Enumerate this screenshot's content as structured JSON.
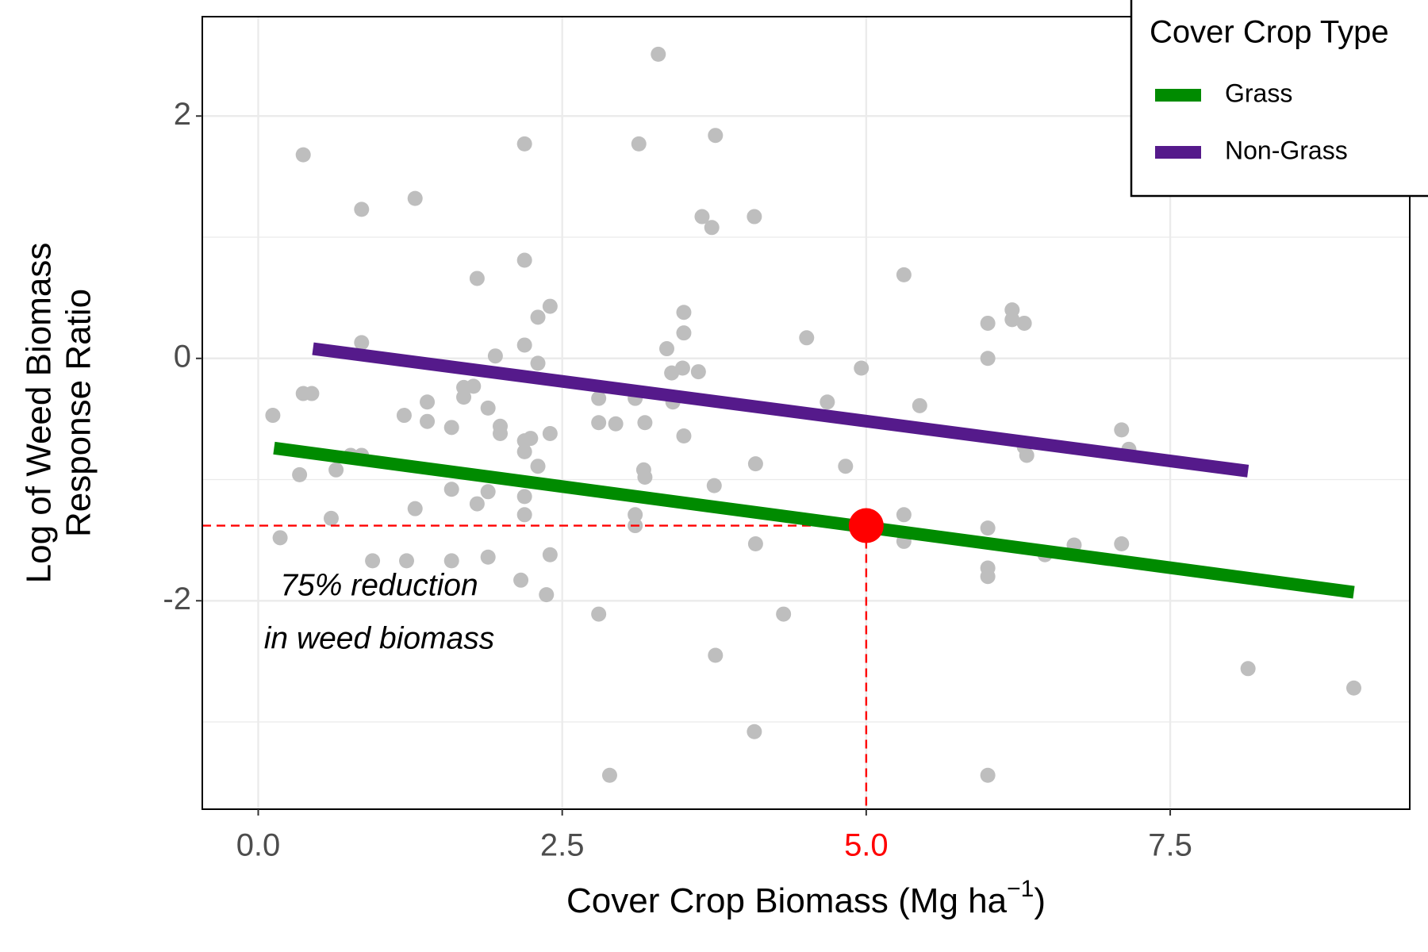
{
  "chart_data": {
    "type": "scatter",
    "xlabel": {
      "text": "Cover Crop Biomass (Mg ha",
      "superscript": "−1",
      "suffix": ")"
    },
    "ylabel": [
      "Log of Weed Biomass",
      "Response Ratio"
    ],
    "xlim": [
      -0.46,
      9.47
    ],
    "ylim": [
      -3.72,
      2.82
    ],
    "xticks": [
      {
        "value": 0,
        "label": "0.0"
      },
      2.5,
      {
        "value": 5,
        "label": "5.0",
        "color": "red"
      },
      7.5
    ],
    "yticks": [
      -2,
      0,
      2
    ],
    "minor_yticks": [
      -3,
      -1,
      1
    ],
    "grid": true,
    "point_color": "#bebebe",
    "x": [
      0.12,
      0.18,
      0.34,
      0.37,
      0.37,
      0.44,
      0.6,
      0.64,
      0.76,
      0.85,
      0.85,
      0.85,
      0.94,
      1.2,
      1.22,
      1.29,
      1.29,
      1.39,
      1.39,
      1.59,
      1.59,
      1.59,
      1.69,
      1.69,
      1.77,
      1.8,
      1.8,
      1.89,
      1.89,
      1.89,
      1.95,
      1.99,
      1.99,
      2.16,
      2.19,
      2.19,
      2.19,
      2.19,
      2.19,
      2.19,
      2.19,
      2.24,
      2.3,
      2.3,
      2.3,
      2.37,
      2.4,
      2.4,
      2.4,
      2.8,
      2.8,
      2.8,
      2.89,
      2.94,
      3.1,
      3.1,
      3.1,
      3.13,
      3.17,
      3.18,
      3.18,
      3.29,
      3.36,
      3.4,
      3.41,
      3.49,
      3.5,
      3.5,
      3.5,
      3.62,
      3.65,
      3.73,
      3.75,
      3.76,
      3.76,
      4.08,
      4.09,
      4.09,
      4.08,
      4.32,
      4.51,
      4.68,
      4.83,
      4.96,
      5.31,
      5.31,
      5.31,
      5.44,
      6.0,
      6.0,
      6.0,
      6.0,
      6.0,
      6.0,
      6.2,
      6.2,
      6.3,
      6.3,
      6.32,
      6.47,
      6.71,
      7.1,
      7.1,
      7.16,
      8.14,
      9.01
    ],
    "y": [
      -0.47,
      -1.48,
      -0.96,
      1.68,
      -0.29,
      -0.29,
      -1.32,
      -0.92,
      -0.8,
      1.23,
      0.13,
      -0.8,
      -1.67,
      -0.47,
      -1.67,
      1.32,
      -1.24,
      -0.36,
      -0.52,
      -0.57,
      -1.08,
      -1.67,
      -0.24,
      -0.32,
      -0.23,
      0.66,
      -1.2,
      -0.41,
      -1.1,
      -1.64,
      0.02,
      -0.56,
      -0.62,
      -1.83,
      1.77,
      0.81,
      0.11,
      -0.68,
      -0.77,
      -1.14,
      -1.29,
      -0.66,
      0.34,
      -0.04,
      -0.89,
      -1.95,
      -0.62,
      -1.62,
      0.43,
      -0.33,
      -0.53,
      -2.11,
      -3.44,
      -0.54,
      -0.33,
      -1.29,
      -1.38,
      1.77,
      -0.92,
      -0.53,
      -0.98,
      2.51,
      0.08,
      -0.12,
      -0.36,
      -0.08,
      0.38,
      0.21,
      -0.64,
      -0.11,
      1.17,
      1.08,
      -1.05,
      1.84,
      -2.45,
      1.17,
      -0.87,
      -1.53,
      -3.08,
      -2.11,
      0.17,
      -0.36,
      -0.89,
      -0.08,
      0.69,
      -1.29,
      -1.51,
      -0.39,
      0.29,
      0,
      -1.4,
      -1.73,
      -1.8,
      -3.44,
      0.4,
      0.32,
      0.29,
      -0.73,
      -0.8,
      -1.62,
      -1.54,
      -0.59,
      -1.53,
      -0.75,
      -2.56,
      -2.72
    ],
    "series": [
      {
        "name": "Grass",
        "color": "#008b00",
        "x": [
          0.13,
          9.01
        ],
        "y": [
          -0.74,
          -1.93
        ]
      },
      {
        "name": "Non-Grass",
        "color": "#551a8b",
        "x": [
          0.45,
          8.14
        ],
        "y": [
          0.08,
          -0.93
        ]
      }
    ],
    "highlight": {
      "x": 5,
      "y": -1.38,
      "color": "red"
    },
    "annotation": [
      "75% reduction",
      "in weed biomass"
    ],
    "legend_title": "Cover Crop Type",
    "legend_position": "top-right"
  }
}
